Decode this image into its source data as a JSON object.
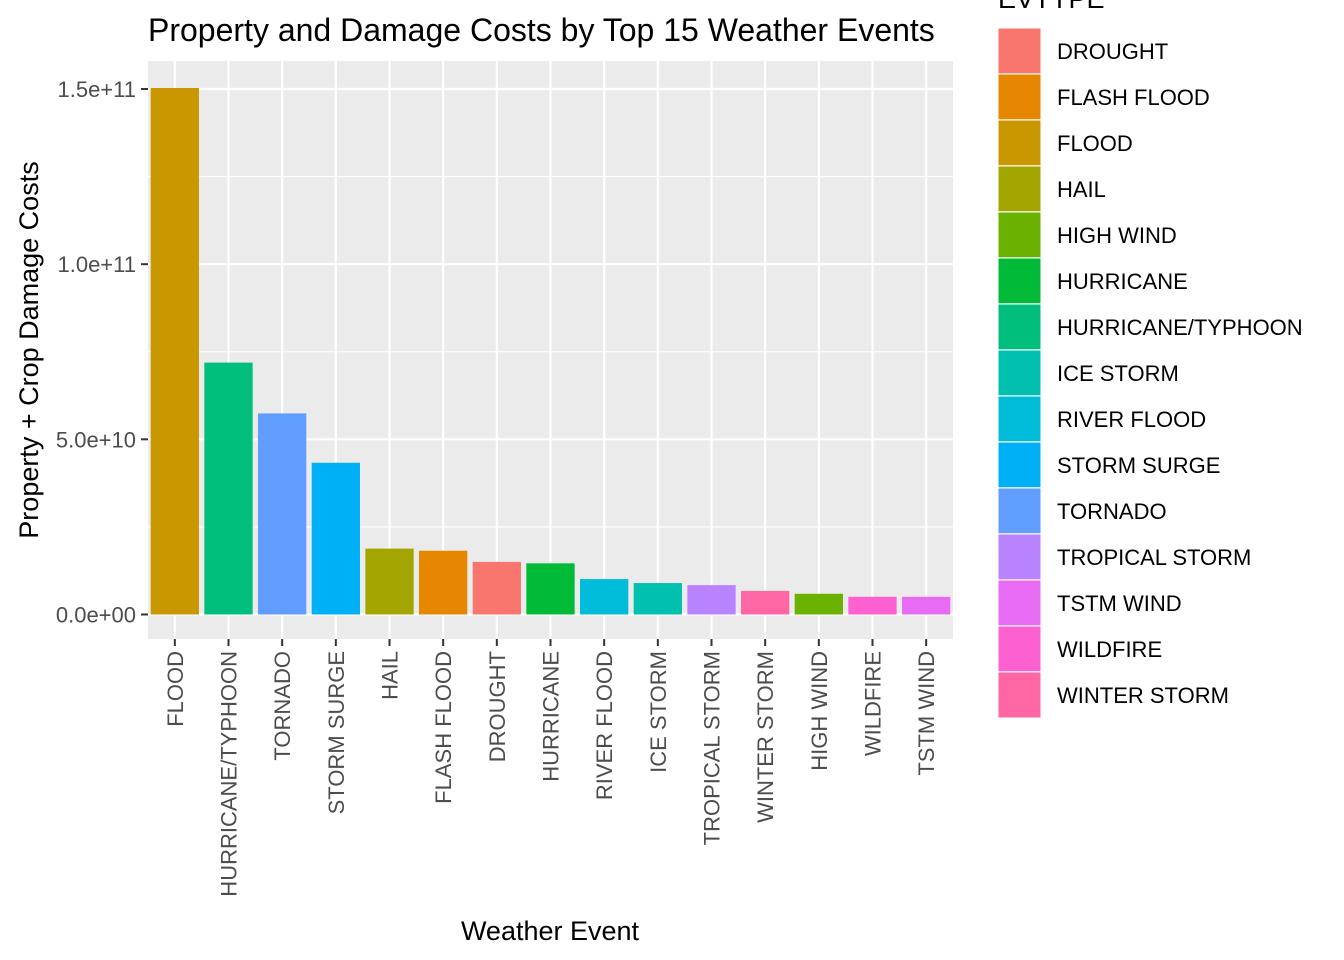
{
  "chart_data": {
    "type": "bar",
    "title": "Property and Damage Costs by Top 15 Weather Events",
    "xlabel": "Weather Event",
    "ylabel": "Property + Crop Damage Costs",
    "ylim": [
      -7000000000,
      158000000000
    ],
    "yticks": [
      0,
      50000000000,
      100000000000,
      150000000000
    ],
    "ytick_labels": [
      "0.0e+00",
      "5.0e+10",
      "1.0e+11",
      "1.5e+11"
    ],
    "grid": true,
    "categories": [
      "FLOOD",
      "HURRICANE/TYPHOON",
      "TORNADO",
      "STORM SURGE",
      "HAIL",
      "FLASH FLOOD",
      "DROUGHT",
      "HURRICANE",
      "RIVER FLOOD",
      "ICE STORM",
      "TROPICAL STORM",
      "WINTER STORM",
      "HIGH WIND",
      "WILDFIRE",
      "TSTM WIND"
    ],
    "values": [
      150300000000,
      71900000000,
      57400000000,
      43300000000,
      18800000000,
      18200000000,
      15000000000,
      14600000000,
      10100000000,
      8970000000,
      8380000000,
      6720000000,
      5910000000,
      5060000000,
      5040000000
    ],
    "legend": {
      "title": "EVTYPE",
      "placement": "right",
      "entries": [
        {
          "label": "DROUGHT",
          "color": "#F8766D"
        },
        {
          "label": "FLASH FLOOD",
          "color": "#E58700"
        },
        {
          "label": "FLOOD",
          "color": "#C99800"
        },
        {
          "label": "HAIL",
          "color": "#A3A500"
        },
        {
          "label": "HIGH WIND",
          "color": "#6BB100"
        },
        {
          "label": "HURRICANE",
          "color": "#00BA38"
        },
        {
          "label": "HURRICANE/TYPHOON",
          "color": "#00BF7D"
        },
        {
          "label": "ICE STORM",
          "color": "#00C0AF"
        },
        {
          "label": "RIVER FLOOD",
          "color": "#00BCD8"
        },
        {
          "label": "STORM SURGE",
          "color": "#00B0F6"
        },
        {
          "label": "TORNADO",
          "color": "#619CFF"
        },
        {
          "label": "TROPICAL STORM",
          "color": "#B983FF"
        },
        {
          "label": "TSTM WIND",
          "color": "#E76BF3"
        },
        {
          "label": "WILDFIRE",
          "color": "#FD61D1"
        },
        {
          "label": "WINTER STORM",
          "color": "#FF67A4"
        }
      ]
    }
  }
}
